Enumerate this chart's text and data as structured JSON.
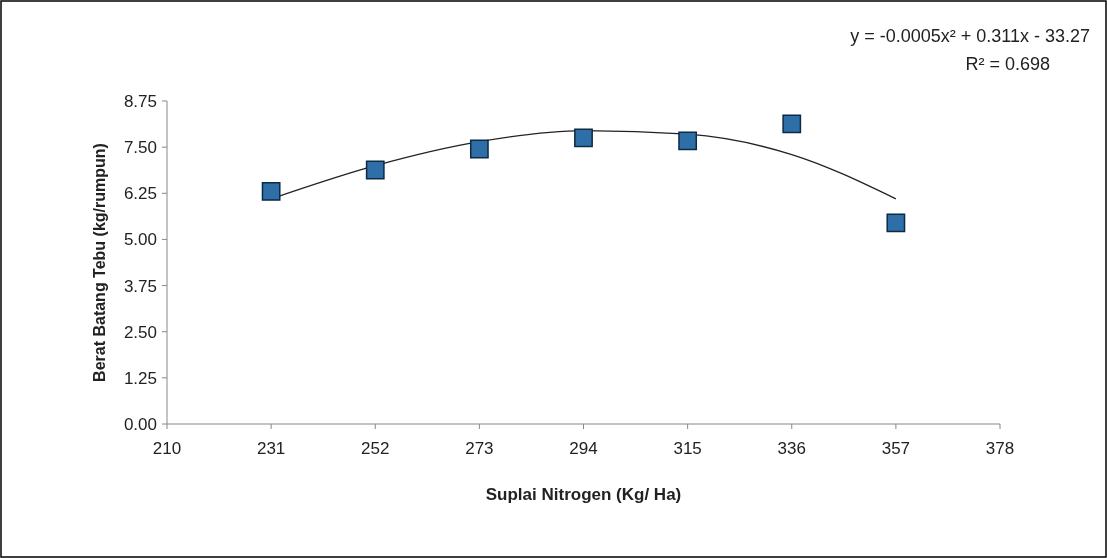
{
  "chart_data": {
    "type": "scatter",
    "xlabel": "Suplai Nitrogen (Kg/ Ha)",
    "ylabel": "Berat Batang Tebu (kg/rumpun)",
    "annotations": [
      "y = -0.0005x² + 0.311x - 33.27",
      "R² = 0.698"
    ],
    "xlim": [
      210,
      378
    ],
    "xticks": [
      210,
      231,
      252,
      273,
      294,
      315,
      336,
      357,
      378
    ],
    "ylim": [
      0,
      8.75
    ],
    "yticks": [
      {
        "value": 0,
        "label": "0.00"
      },
      {
        "value": 1.25,
        "label": "1.25"
      },
      {
        "value": 2.5,
        "label": "2.50"
      },
      {
        "value": 3.75,
        "label": "3.75"
      },
      {
        "value": 5,
        "label": "5.00"
      },
      {
        "value": 6.25,
        "label": "6.25"
      },
      {
        "value": 7.5,
        "label": "7.50"
      },
      {
        "value": 8.75,
        "label": "8.75"
      }
    ],
    "marker": "square",
    "grid": false,
    "series": [
      {
        "color": "#2f6fa8",
        "x": [
          231,
          252,
          273,
          294,
          315,
          336,
          357
        ],
        "values": [
          6.3,
          6.88,
          7.45,
          7.75,
          7.67,
          8.13,
          5.45
        ]
      },
      {
        "type": "line",
        "marker": "none",
        "color": "#222222",
        "x": [
          231,
          252,
          273,
          294,
          315,
          336,
          357
        ],
        "values": [
          6.1,
          7.0,
          7.65,
          7.95,
          7.85,
          7.3,
          6.1
        ]
      }
    ]
  }
}
